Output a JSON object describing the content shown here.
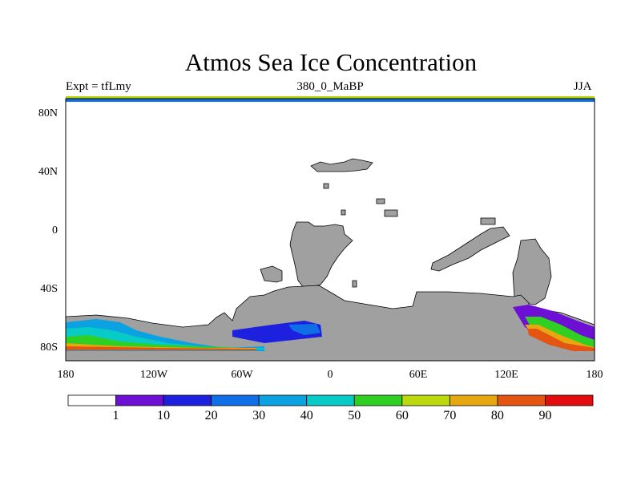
{
  "title": "Atmos Sea Ice Concentration",
  "subtitle_left": "Expt = tfLmy",
  "subtitle_center": "380_0_MaBP",
  "subtitle_right": "JJA",
  "lat_labels": [
    "80N",
    "40N",
    "0",
    "40S",
    "80S"
  ],
  "lon_labels": [
    "180",
    "120W",
    "60W",
    "0",
    "60E",
    "120E",
    "180"
  ],
  "colorbar": {
    "colors": [
      "#ffffff",
      "#6d0fd4",
      "#1e20df",
      "#0f6fe6",
      "#0aa2e0",
      "#08cbc7",
      "#2fcf24",
      "#bcd90d",
      "#e7a70f",
      "#e55512",
      "#e30d0f"
    ],
    "labels": [
      "1",
      "10",
      "20",
      "30",
      "40",
      "50",
      "60",
      "70",
      "80",
      "90"
    ]
  },
  "map_colors": {
    "land": "#a0a0a0",
    "coast": "#000000"
  }
}
